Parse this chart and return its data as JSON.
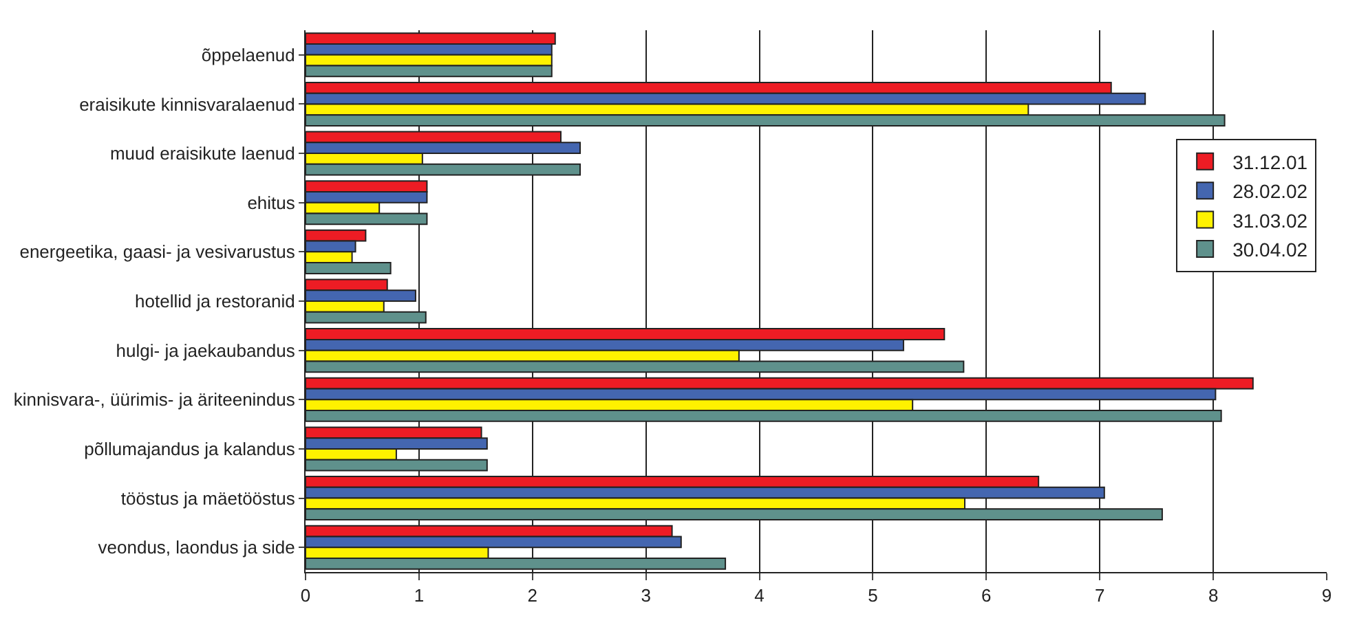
{
  "chart_data": {
    "type": "bar",
    "orientation": "horizontal",
    "categories": [
      "õppelaenud",
      "eraisikute kinnisvaralaenud",
      "muud eraisikute laenud",
      "ehitus",
      "energeetika, gaasi- ja vesivarustus",
      "hotellid ja restoranid",
      "hulgi- ja jaekaubandus",
      "kinnisvara-, üürimis- ja äriteenindus",
      "põllumajandus ja kalandus",
      "tööstus ja mäetööstus",
      "veondus, laondus ja side"
    ],
    "series": [
      {
        "name": "31.12.01",
        "color": "#ed1c24",
        "values": [
          2.2,
          7.1,
          2.25,
          1.07,
          0.53,
          0.72,
          5.63,
          8.35,
          1.55,
          6.46,
          3.23
        ]
      },
      {
        "name": "28.02.02",
        "color": "#4466b0",
        "values": [
          2.17,
          7.4,
          2.42,
          1.07,
          0.44,
          0.97,
          5.27,
          8.02,
          1.6,
          7.04,
          3.31
        ]
      },
      {
        "name": "31.03.02",
        "color": "#fff200",
        "values": [
          2.17,
          6.37,
          1.03,
          0.65,
          0.41,
          0.69,
          3.82,
          5.35,
          0.8,
          5.81,
          1.61
        ]
      },
      {
        "name": "30.04.02",
        "color": "#5f918c",
        "values": [
          2.17,
          8.1,
          2.42,
          1.07,
          0.75,
          1.06,
          5.8,
          8.07,
          1.6,
          7.55,
          3.7
        ]
      }
    ],
    "xlim": [
      0,
      9
    ],
    "xticks": [
      0,
      1,
      2,
      3,
      4,
      5,
      6,
      7,
      8,
      9
    ],
    "grid": "x",
    "legend": "right"
  }
}
